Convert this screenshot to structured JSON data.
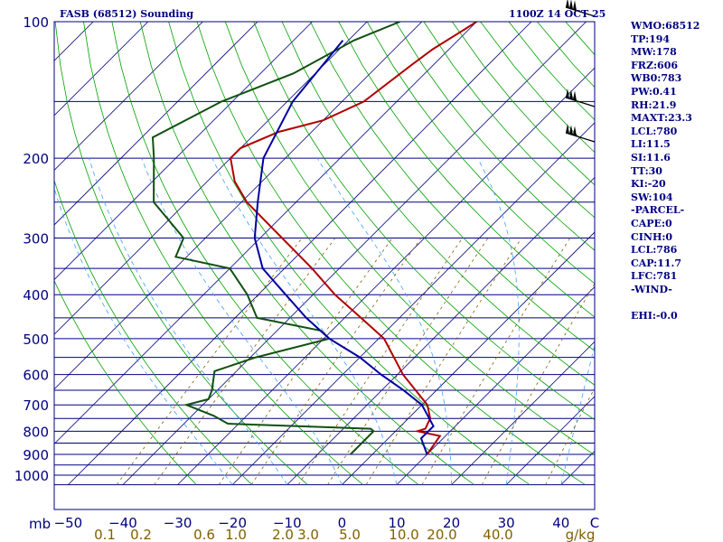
{
  "chart_data": {
    "type": "line",
    "title": "FASB (68512) Sounding",
    "time": "1100Z 14 OCT 25",
    "pressure_unit": "mb",
    "mixing_unit": "g/kg",
    "pressure_levels": [
      100,
      150,
      200,
      250,
      300,
      350,
      400,
      450,
      500,
      550,
      600,
      650,
      700,
      750,
      800,
      850,
      900,
      950,
      1000,
      1050
    ],
    "pressure_tick_labels": [
      100,
      200,
      300,
      400,
      500,
      600,
      700,
      800,
      900,
      1000
    ],
    "temp_tick_labels": [
      -50,
      -40,
      -30,
      -20,
      -10,
      0,
      10,
      20,
      30,
      40,
      "C"
    ],
    "mixing_ratio_labels": [
      "0.1",
      "0.2",
      "0.6",
      "1.0",
      "2.0",
      "3.0",
      "5.0",
      "10.0",
      "20.0",
      "40.0"
    ],
    "series": [
      {
        "name": "Temperature",
        "color": "#b00000",
        "points": [
          [
            100,
            -60
          ],
          [
            105,
            -61
          ],
          [
            115,
            -63
          ],
          [
            125,
            -64
          ],
          [
            150,
            -66
          ],
          [
            165,
            -70
          ],
          [
            175,
            -76
          ],
          [
            190,
            -80
          ],
          [
            200,
            -80
          ],
          [
            225,
            -75
          ],
          [
            250,
            -69
          ],
          [
            300,
            -56
          ],
          [
            350,
            -45
          ],
          [
            400,
            -36
          ],
          [
            450,
            -27
          ],
          [
            500,
            -19
          ],
          [
            600,
            -9
          ],
          [
            700,
            1
          ],
          [
            750,
            4
          ],
          [
            790,
            5
          ],
          [
            800,
            4
          ],
          [
            820,
            9
          ],
          [
            900,
            10
          ]
        ]
      },
      {
        "name": "Dewpoint",
        "color": "#105010",
        "points": [
          [
            100,
            -74
          ],
          [
            110,
            -79
          ],
          [
            130,
            -84
          ],
          [
            150,
            -92
          ],
          [
            180,
            -98
          ],
          [
            200,
            -94
          ],
          [
            250,
            -86
          ],
          [
            300,
            -74
          ],
          [
            330,
            -72
          ],
          [
            350,
            -60
          ],
          [
            400,
            -52
          ],
          [
            450,
            -46
          ],
          [
            480,
            -32
          ],
          [
            500,
            -29
          ],
          [
            550,
            -39
          ],
          [
            590,
            -44
          ],
          [
            650,
            -41
          ],
          [
            680,
            -40
          ],
          [
            700,
            -43
          ],
          [
            740,
            -36
          ],
          [
            770,
            -32
          ],
          [
            790,
            -5
          ],
          [
            800,
            -4
          ],
          [
            900,
            -4
          ]
        ]
      },
      {
        "name": "Parcel",
        "color": "#0000a0",
        "points": [
          [
            110,
            -81
          ],
          [
            150,
            -79
          ],
          [
            200,
            -74
          ],
          [
            250,
            -67
          ],
          [
            300,
            -61
          ],
          [
            350,
            -54
          ],
          [
            400,
            -45
          ],
          [
            450,
            -37
          ],
          [
            500,
            -29
          ],
          [
            550,
            -20
          ],
          [
            600,
            -13
          ],
          [
            650,
            -6
          ],
          [
            700,
            0
          ],
          [
            780,
            6
          ],
          [
            830,
            6
          ],
          [
            900,
            10
          ]
        ]
      }
    ],
    "wind_barbs": [
      {
        "pressure": 100
      },
      {
        "pressure": 150
      },
      {
        "pressure": 170
      }
    ]
  },
  "side_panel": [
    "WMO:68512",
    "TP:194",
    "MW:178",
    "FRZ:606",
    "WB0:783",
    "PW:0.41",
    "RH:21.9",
    "MAXT:23.3",
    "LCL:780",
    "LI:11.5",
    "SI:11.6",
    "TT:30",
    "KI:-20",
    "SW:104",
    "-PARCEL-",
    "CAPE:0",
    "CINH:0",
    "LCL:786",
    "CAP:11.7",
    "LFC:781",
    "-WIND-",
    "",
    "EHI:-0.0"
  ],
  "colors": {
    "frame": "#000080",
    "isobar": "#000080",
    "isotherm": "#000080",
    "dry_adiabat": "#00a000",
    "moist_adiabat": "#40a0ff",
    "mixing_ratio": "#806000",
    "label": "#000080",
    "mix_label": "#806000"
  }
}
